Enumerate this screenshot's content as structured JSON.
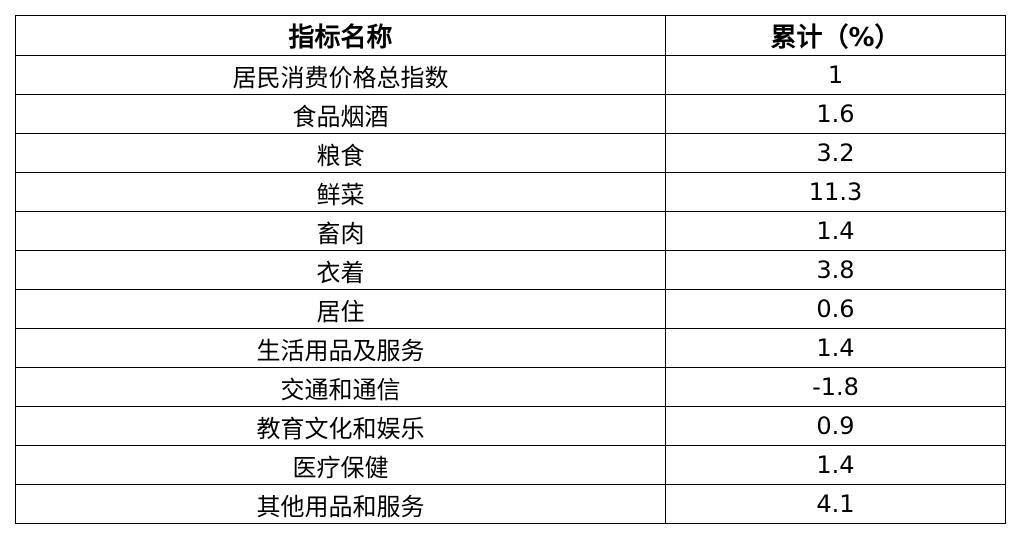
{
  "table": {
    "headers": [
      "指标名称",
      "累计（%）"
    ],
    "rows": [
      [
        "居民消费价格总指数",
        "1"
      ],
      [
        "食品烟酒",
        "1.6"
      ],
      [
        "粮食",
        "3.2"
      ],
      [
        "鲜菜",
        "11.3"
      ],
      [
        "畜肉",
        "1.4"
      ],
      [
        "衣着",
        "3.8"
      ],
      [
        "居住",
        "0.6"
      ],
      [
        "生活用品及服务",
        "1.4"
      ],
      [
        "交通和通信",
        "-1.8"
      ],
      [
        "教育文化和娱乐",
        "0.9"
      ],
      [
        "医疗保健",
        "1.4"
      ],
      [
        "其他用品和服务",
        "4.1"
      ]
    ]
  }
}
